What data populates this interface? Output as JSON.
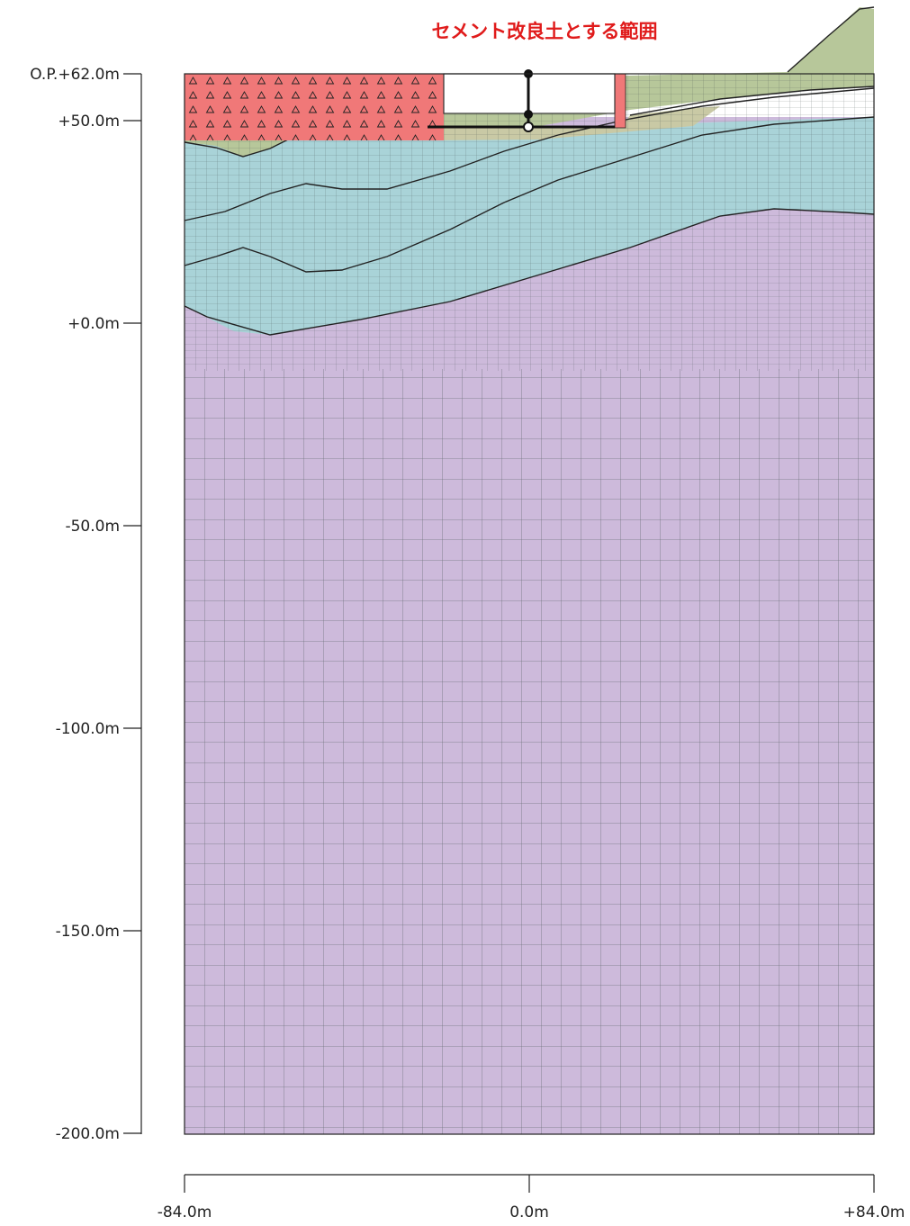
{
  "callout": {
    "label": "セメント改良土とする範囲"
  },
  "y_axis": {
    "ticks": [
      {
        "value": 62,
        "label": "O.P.+62.0m"
      },
      {
        "value": 50,
        "label": "+50.0m"
      },
      {
        "value": 0,
        "label": "+0.0m"
      },
      {
        "value": -50,
        "label": "-50.0m"
      },
      {
        "value": -100,
        "label": "-100.0m"
      },
      {
        "value": -150,
        "label": "-150.0m"
      },
      {
        "value": -200,
        "label": "-200.0m"
      }
    ]
  },
  "x_axis": {
    "ticks": [
      {
        "value": -84,
        "label": "-84.0m"
      },
      {
        "value": 0,
        "label": "0.0m"
      },
      {
        "value": 84,
        "label": "+84.0m"
      }
    ]
  },
  "colors": {
    "cement_improved_soil": "#f07878",
    "upper_soil_green": "#b7c79a",
    "gravel_layer": "#c9c9a5",
    "middle_rock_blue": "#a9d3d8",
    "bedrock_purple": "#cdbadb",
    "mesh_line": "#3f4f4a",
    "callout_red": "#e01b1b"
  }
}
